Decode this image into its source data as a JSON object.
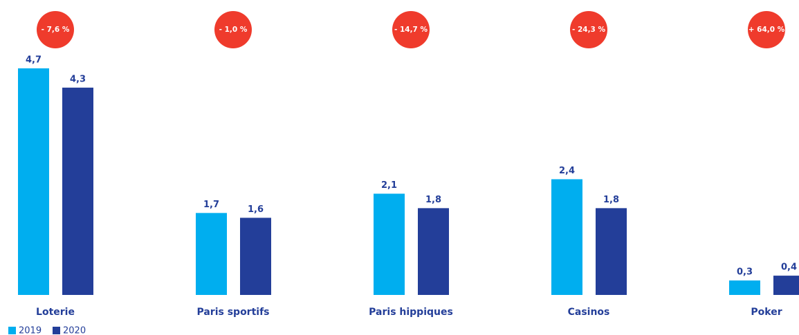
{
  "chart_data": {
    "type": "bar",
    "categories": [
      "Loterie",
      "Paris sportifs",
      "Paris hippiques",
      "Casinos",
      "Poker"
    ],
    "series": [
      {
        "name": "2019",
        "color": "#00aeef",
        "values": [
          4.7,
          1.7,
          2.1,
          2.4,
          0.3
        ],
        "value_labels": [
          "4,7",
          "1,7",
          "2,1",
          "2,4",
          "0,3"
        ]
      },
      {
        "name": "2020",
        "color": "#233e99",
        "values": [
          4.3,
          1.6,
          1.8,
          1.8,
          0.4
        ],
        "value_labels": [
          "4,3",
          "1,6",
          "1,8",
          "1,8",
          "0,4"
        ]
      }
    ],
    "annotations": [
      "- 7,6 %",
      "- 1,0 %",
      "- 14,7 %",
      "- 24,3 %",
      "+ 64,0 %"
    ],
    "annotation_color": "#ef3b2c"
  }
}
